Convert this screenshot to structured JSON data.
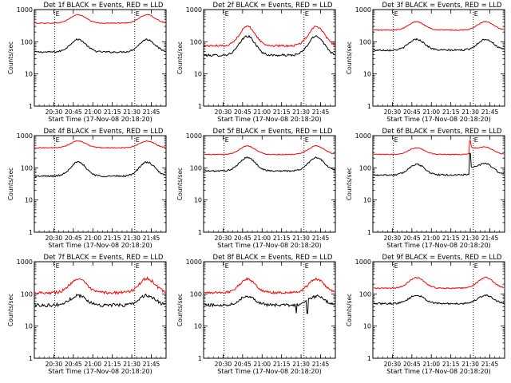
{
  "chart_data": [
    {
      "type": "line",
      "title": "Det 1f BLACK = Events, RED = LLD",
      "xlabel": "Start Time (17-Nov-08 20:18:20)",
      "ylabel": "Counts/sec",
      "yscale": "log",
      "ylim": [
        1,
        1000
      ],
      "xticks": [
        "20:30",
        "20:45",
        "21:00",
        "21:15",
        "21:30",
        "21:45"
      ],
      "yticks": [
        "1",
        "10",
        "100",
        "1000"
      ],
      "markers": [
        "E",
        "E"
      ],
      "series": [
        {
          "name": "Events",
          "color": "#000000",
          "base": 48,
          "peak": 118,
          "noise": 0.06
        },
        {
          "name": "LLD",
          "color": "#ff0000",
          "base": 380,
          "peak": 690,
          "noise": 0.03
        }
      ]
    },
    {
      "type": "line",
      "title": "Det 2f BLACK = Events, RED = LLD",
      "xlabel": "Start Time (17-Nov-08 20:18:20)",
      "ylabel": "Counts/sec",
      "yscale": "log",
      "ylim": [
        1,
        1000
      ],
      "xticks": [
        "20:30",
        "20:45",
        "21:00",
        "21:15",
        "21:30",
        "21:45"
      ],
      "yticks": [
        "1",
        "10",
        "100",
        "1000"
      ],
      "markers": [
        "E",
        "E"
      ],
      "series": [
        {
          "name": "Events",
          "color": "#000000",
          "base": 38,
          "peak": 150,
          "noise": 0.08
        },
        {
          "name": "LLD",
          "color": "#ff0000",
          "base": 75,
          "peak": 300,
          "noise": 0.07
        }
      ]
    },
    {
      "type": "line",
      "title": "Det 3f BLACK = Events, RED = LLD",
      "xlabel": "Start Time (17-Nov-08 20:18:20)",
      "ylabel": "Counts/sec",
      "yscale": "log",
      "ylim": [
        1,
        1000
      ],
      "xticks": [
        "20:30",
        "20:45",
        "21:00",
        "21:15",
        "21:30",
        "21:45"
      ],
      "yticks": [
        "1",
        "10",
        "100",
        "1000"
      ],
      "markers": [
        "E",
        "E"
      ],
      "series": [
        {
          "name": "Events",
          "color": "#000000",
          "base": 55,
          "peak": 120,
          "noise": 0.06
        },
        {
          "name": "LLD",
          "color": "#ff0000",
          "base": 230,
          "peak": 420,
          "noise": 0.03
        }
      ]
    },
    {
      "type": "line",
      "title": "Det 4f BLACK = Events, RED = LLD",
      "xlabel": "Start Time (17-Nov-08 20:18:20)",
      "ylabel": "Counts/sec",
      "yscale": "log",
      "ylim": [
        1,
        1000
      ],
      "xticks": [
        "20:30",
        "20:45",
        "21:00",
        "21:15",
        "21:30",
        "21:45"
      ],
      "yticks": [
        "1",
        "10",
        "100",
        "1000"
      ],
      "markers": [
        "E",
        "E"
      ],
      "series": [
        {
          "name": "Events",
          "color": "#000000",
          "base": 55,
          "peak": 150,
          "noise": 0.06
        },
        {
          "name": "LLD",
          "color": "#ff0000",
          "base": 420,
          "peak": 680,
          "noise": 0.03
        }
      ]
    },
    {
      "type": "line",
      "title": "Det 5f BLACK = Events, RED = LLD",
      "xlabel": "Start Time (17-Nov-08 20:18:20)",
      "ylabel": "Counts/sec",
      "yscale": "log",
      "ylim": [
        1,
        1000
      ],
      "xticks": [
        "20:30",
        "20:45",
        "21:00",
        "21:15",
        "21:30",
        "21:45"
      ],
      "yticks": [
        "1",
        "10",
        "100",
        "1000"
      ],
      "markers": [
        "E",
        "E"
      ],
      "series": [
        {
          "name": "Events",
          "color": "#000000",
          "base": 80,
          "peak": 210,
          "noise": 0.05
        },
        {
          "name": "LLD",
          "color": "#ff0000",
          "base": 260,
          "peak": 480,
          "noise": 0.03
        }
      ]
    },
    {
      "type": "line",
      "title": "Det 6f BLACK = Events, RED = LLD",
      "xlabel": "Start Time (17-Nov-08 20:18:20)",
      "ylabel": "Counts/sec",
      "yscale": "log",
      "ylim": [
        1,
        1000
      ],
      "xticks": [
        "20:30",
        "20:45",
        "21:00",
        "21:15",
        "21:30",
        "21:45"
      ],
      "yticks": [
        "1",
        "10",
        "100",
        "1000"
      ],
      "markers": [
        "E",
        "E"
      ],
      "series": [
        {
          "name": "Events",
          "color": "#000000",
          "base": 60,
          "peak": 130,
          "noise": 0.06,
          "spike": 280
        },
        {
          "name": "LLD",
          "color": "#ff0000",
          "base": 260,
          "peak": 420,
          "noise": 0.03,
          "spike": 700
        }
      ]
    },
    {
      "type": "line",
      "title": "Det 7f BLACK = Events, RED = LLD",
      "xlabel": "Start Time (17-Nov-08 20:18:20)",
      "ylabel": "Counts/sec",
      "yscale": "log",
      "ylim": [
        1,
        1000
      ],
      "xticks": [
        "20:30",
        "20:45",
        "21:00",
        "21:15",
        "21:30",
        "21:45"
      ],
      "yticks": [
        "1",
        "10",
        "100",
        "1000"
      ],
      "markers": [
        "E",
        "E"
      ],
      "series": [
        {
          "name": "Events",
          "color": "#000000",
          "base": 45,
          "peak": 90,
          "noise": 0.12
        },
        {
          "name": "LLD",
          "color": "#ff0000",
          "base": 110,
          "peak": 300,
          "noise": 0.1
        }
      ]
    },
    {
      "type": "line",
      "title": "Det 8f BLACK = Events, RED = LLD",
      "xlabel": "Start Time (17-Nov-08 20:18:20)",
      "ylabel": "Counts/sec",
      "yscale": "log",
      "ylim": [
        1,
        1000
      ],
      "xticks": [
        "20:30",
        "20:45",
        "21:00",
        "21:15",
        "21:30",
        "21:45"
      ],
      "yticks": [
        "1",
        "10",
        "100",
        "1000"
      ],
      "markers": [
        "E",
        "E"
      ],
      "series": [
        {
          "name": "Events",
          "color": "#000000",
          "base": 45,
          "peak": 85,
          "noise": 0.1,
          "dip": true
        },
        {
          "name": "LLD",
          "color": "#ff0000",
          "base": 110,
          "peak": 290,
          "noise": 0.08
        }
      ]
    },
    {
      "type": "line",
      "title": "Det 9f BLACK = Events, RED = LLD",
      "xlabel": "Start Time (17-Nov-08 20:18:20)",
      "ylabel": "Counts/sec",
      "yscale": "log",
      "ylim": [
        1,
        1000
      ],
      "xticks": [
        "20:30",
        "20:45",
        "21:00",
        "21:15",
        "21:30",
        "21:45"
      ],
      "yticks": [
        "1",
        "10",
        "100",
        "1000"
      ],
      "markers": [
        "E",
        "E"
      ],
      "series": [
        {
          "name": "Events",
          "color": "#000000",
          "base": 50,
          "peak": 90,
          "noise": 0.06
        },
        {
          "name": "LLD",
          "color": "#ff0000",
          "base": 150,
          "peak": 320,
          "noise": 0.04
        }
      ]
    }
  ]
}
